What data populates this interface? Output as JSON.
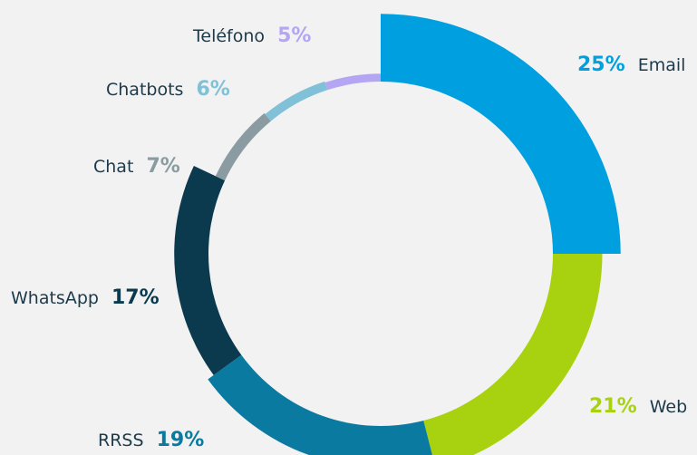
{
  "chart_data": {
    "type": "donut",
    "categories": [
      "Email",
      "Web",
      "RRSS",
      "WhatsApp",
      "Chat",
      "Chatbots",
      "Teléfono"
    ],
    "values": [
      25,
      21,
      19,
      17,
      7,
      6,
      5
    ],
    "value_labels": [
      "25%",
      "21%",
      "19%",
      "17%",
      "7%",
      "6%",
      "5%"
    ],
    "colors": [
      "#009fdf",
      "#a8d20f",
      "#0a7aa0",
      "#0b3a4e",
      "#8a9ca2",
      "#80c1d8",
      "#b4a6f3"
    ]
  }
}
